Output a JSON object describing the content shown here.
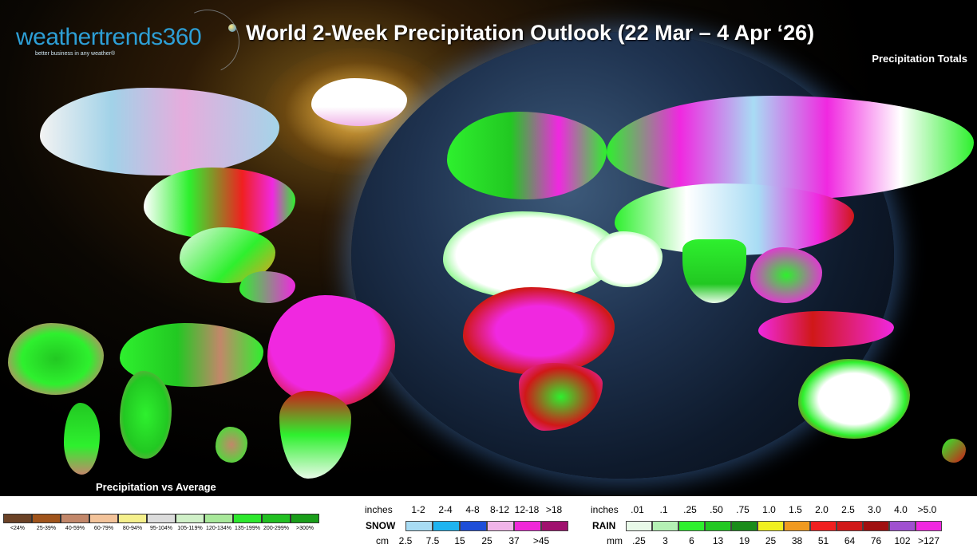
{
  "header": {
    "logo_brand": "weathertrends",
    "logo_number": "360",
    "logo_tagline": "better business in any weather®",
    "title": "World 2-Week Precipitation Outlook (22 Mar – 4 Apr ‘26)",
    "subtitle": "Precipitation Totals"
  },
  "inset": {
    "label": "Precipitation vs Average"
  },
  "avg_legend": {
    "labels": [
      "<24%",
      "25-39%",
      "40-59%",
      "60-79%",
      "80-94%",
      "95-104%",
      "105-119%",
      "120-134%",
      "135-199%",
      "200-299%",
      ">300%"
    ],
    "colors": [
      "#6b4226",
      "#a0541c",
      "#c2876a",
      "#f3c39a",
      "#f5f08c",
      "#dcdcdc",
      "#d0f0c8",
      "#a8e89a",
      "#2ee82e",
      "#22c022",
      "#1a9e1a"
    ]
  },
  "snow_legend": {
    "name": "SNOW",
    "inches_unit": "inches",
    "inches": [
      "1-2",
      "2-4",
      "4-8",
      "8-12",
      "12-18",
      ">18"
    ],
    "cm_unit": "cm",
    "cm": [
      "2.5",
      "7.5",
      "15",
      "25",
      "37",
      ">45"
    ],
    "colors": [
      "#a8dcf4",
      "#1eb4f0",
      "#1e4ed8",
      "#f0b4e8",
      "#f028d8",
      "#a0106e"
    ]
  },
  "rain_legend": {
    "name": "RAIN",
    "inches_unit": "inches",
    "inches": [
      ".01",
      ".1",
      ".25",
      ".50",
      ".75",
      "1.0",
      "1.5",
      "2.0",
      "2.5",
      "3.0",
      "4.0",
      ">5.0"
    ],
    "mm_unit": "mm",
    "mm": [
      ".25",
      "3",
      "6",
      "13",
      "19",
      "25",
      "38",
      "51",
      "64",
      "76",
      "102",
      ">127"
    ],
    "colors": [
      "#e8fae8",
      "#b4f0b4",
      "#2ef02e",
      "#22c822",
      "#1a8c1a",
      "#f0f020",
      "#f09a20",
      "#f02020",
      "#d01818",
      "#a01010",
      "#a050d0",
      "#f028e0"
    ]
  }
}
